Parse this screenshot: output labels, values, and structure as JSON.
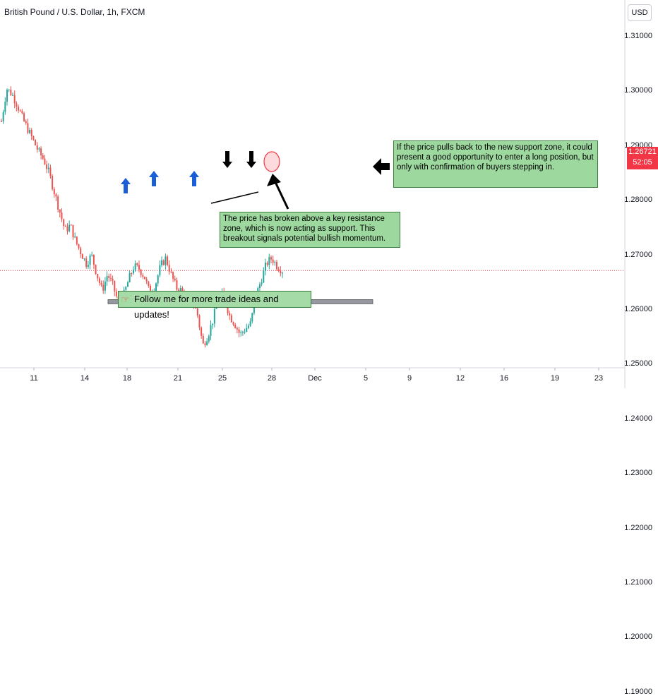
{
  "header": {
    "title": "British Pound / U.S. Dollar, 1h, FXCM",
    "currency": "USD"
  },
  "price_tag": {
    "price": "1.26721",
    "countdown": "52:05",
    "color": "#f23645"
  },
  "notes": {
    "support_note": "If the price pulls back to the new support zone, it could present a good opportunity to enter a long position, but only with confirmation of buyers stepping in.",
    "breakout_note": "The price has broken above a key resistance zone, which is now acting as support. This breakout signals potential bullish momentum.",
    "follow_note": "Follow me for more trade ideas and updates!",
    "follow_icon": "pointing-hand-icon"
  },
  "colors": {
    "up": "#26a69a",
    "down": "#ef5350",
    "zone": "#9598a1",
    "note_bg": "#9dd89f",
    "arrow_blue": "#1a5fd6"
  },
  "chart_data": {
    "type": "candlestick",
    "symbol": "GBPUSD",
    "timeframe": "1h",
    "y_ticks": [
      "1.31000",
      "1.30000",
      "1.29000",
      "1.28000",
      "1.27000",
      "1.26000",
      "1.25000",
      "1.24000",
      "1.23000",
      "1.22000",
      "1.21000",
      "1.20000",
      "1.19000"
    ],
    "ylim": [
      1.188,
      1.3165
    ],
    "x_ticks": [
      "11",
      "14",
      "18",
      "21",
      "25",
      "28",
      "Dec",
      "5",
      "9",
      "12",
      "16",
      "19",
      "23"
    ],
    "last_price": 1.26721,
    "support_zone": 1.2615,
    "close_path": [
      1.2945,
      1.3005,
      1.2995,
      1.2975,
      1.295,
      1.293,
      1.291,
      1.289,
      1.2875,
      1.285,
      1.2815,
      1.278,
      1.2745,
      1.2755,
      1.2725,
      1.2705,
      1.2685,
      1.27,
      1.2665,
      1.2635,
      1.2665,
      1.2645,
      1.2615,
      1.2625,
      1.2655,
      1.268,
      1.2675,
      1.266,
      1.263,
      1.2645,
      1.268,
      1.2695,
      1.2665,
      1.264,
      1.2635,
      1.2615,
      1.262,
      1.259,
      1.2535,
      1.2555,
      1.2585,
      1.263,
      1.2625,
      1.259,
      1.2575,
      1.2555,
      1.2565,
      1.2575,
      1.2625,
      1.2655,
      1.2685,
      1.2695,
      1.268,
      1.2672
    ]
  }
}
